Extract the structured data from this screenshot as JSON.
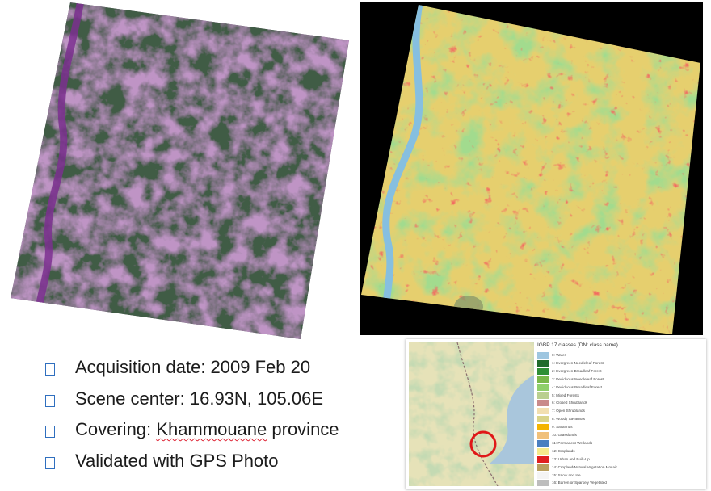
{
  "bullets": [
    {
      "text_before": "Acquisition date: 2009 Feb 20",
      "text_squiggle": "",
      "text_after": ""
    },
    {
      "text_before": "Scene center: 16.93N, 105.06E",
      "text_squiggle": "",
      "text_after": ""
    },
    {
      "text_before": "Covering: ",
      "text_squiggle": "Khammouane",
      "text_after": " province"
    },
    {
      "text_before": "Validated with GPS Photo",
      "text_squiggle": "",
      "text_after": ""
    }
  ],
  "legend": {
    "title": "IGBP 17 classes (DN: class name)",
    "items": [
      {
        "label": "0: Water",
        "color": "#9ec6e0"
      },
      {
        "label": "1: Evergreen Needleleaf Forest",
        "color": "#1f6b2b"
      },
      {
        "label": "2: Evergreen Broadleaf Forest",
        "color": "#2f8f35"
      },
      {
        "label": "3: Deciduous Needleleaf Forest",
        "color": "#7ab84a"
      },
      {
        "label": "4: Deciduous Broadleaf Forest",
        "color": "#8fcf6a"
      },
      {
        "label": "5: Mixed Forests",
        "color": "#b9cf8f"
      },
      {
        "label": "6: Closed Shrublands",
        "color": "#c98a8a"
      },
      {
        "label": "7: Open Shrublands",
        "color": "#f2dfb0"
      },
      {
        "label": "8: Woody Savannas",
        "color": "#d9d48a"
      },
      {
        "label": "9: Savannas",
        "color": "#f4b400"
      },
      {
        "label": "10: Grasslands",
        "color": "#f0c07a"
      },
      {
        "label": "11: Permanent Wetlands",
        "color": "#4a7fc0"
      },
      {
        "label": "12: Croplands",
        "color": "#f6ea8c"
      },
      {
        "label": "13: Urban and Built-Up",
        "color": "#e02020"
      },
      {
        "label": "14: Cropland/Natural Vegetation Mosaic",
        "color": "#b9a060"
      },
      {
        "label": "15: Snow and Ice",
        "color": "#f4f4f4"
      },
      {
        "label": "16: Barren or Sparsely Vegetated",
        "color": "#bdbdbd"
      }
    ]
  },
  "colors": {
    "bullet_box": "#2f6fbf",
    "satellite_purple": "#7a4c84",
    "satellite_green": "#3c5a43",
    "landcover_yellow": "#e8cf6a",
    "landcover_green": "#5fb445",
    "landcover_red": "#e3261f",
    "river_blue": "#86bfe0",
    "highlight_circle": "#e01818"
  }
}
